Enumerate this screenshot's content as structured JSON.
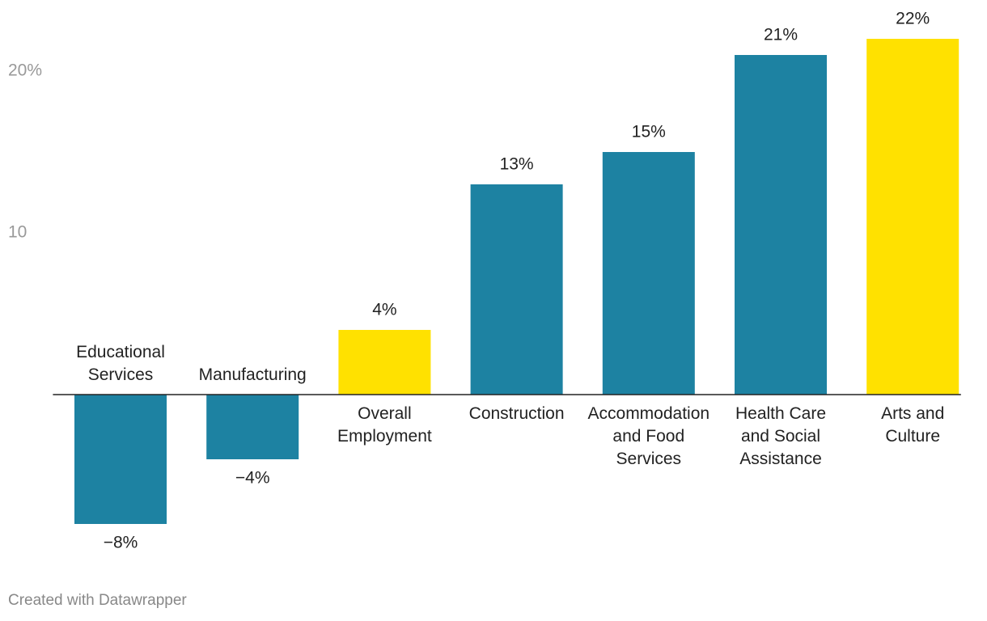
{
  "chart_data": {
    "type": "bar",
    "categories": [
      "Educational Services",
      "Manufacturing",
      "Overall Employment",
      "Construction",
      "Accommodation and Food Services",
      "Health Care and Social Assistance",
      "Arts and Culture"
    ],
    "values": [
      -8,
      -4,
      4,
      13,
      15,
      21,
      22
    ],
    "value_labels": [
      "−8%",
      "−4%",
      "4%",
      "13%",
      "15%",
      "21%",
      "22%"
    ],
    "colors": [
      "#1d82a2",
      "#1d82a2",
      "#ffe100",
      "#1d82a2",
      "#1d82a2",
      "#1d82a2",
      "#ffe100"
    ],
    "ylim": [
      -8,
      22
    ],
    "yticks": [
      10,
      {
        "value": 20,
        "label": "20%"
      }
    ],
    "grid": false,
    "credit": "Created with Datawrapper"
  }
}
